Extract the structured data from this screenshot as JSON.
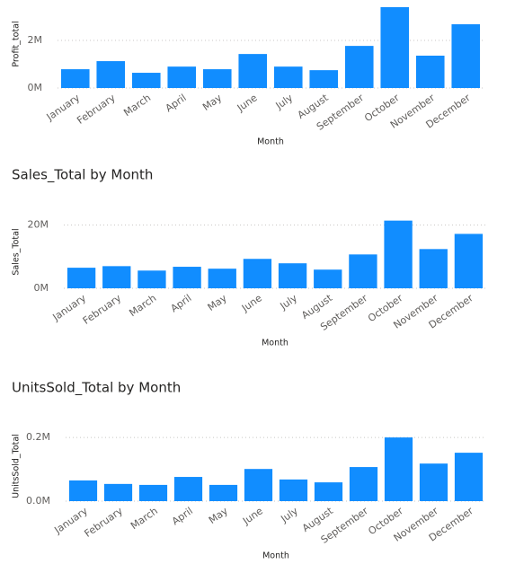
{
  "chart_data": [
    {
      "type": "bar",
      "x_label": "Month",
      "y_label": "Profit_total",
      "categories": [
        "January",
        "February",
        "March",
        "April",
        "May",
        "June",
        "July",
        "August",
        "September",
        "October",
        "November",
        "December"
      ],
      "values": [
        790000,
        1130000,
        640000,
        900000,
        790000,
        1430000,
        900000,
        750000,
        1770000,
        3400000,
        1360000,
        2680000
      ],
      "color": "#118DFF",
      "ylim": [
        0,
        3700000
      ],
      "yticks": [
        {
          "value": 0,
          "label": "0M"
        },
        {
          "value": 2000000,
          "label": "2M"
        }
      ],
      "grid": true
    },
    {
      "type": "bar",
      "title": "Sales_Total by Month",
      "x_label": "Month",
      "y_label": "Sales_Total",
      "categories": [
        "January",
        "February",
        "March",
        "April",
        "May",
        "June",
        "July",
        "August",
        "September",
        "October",
        "November",
        "December"
      ],
      "values": [
        6500000,
        7000000,
        5600000,
        6800000,
        6200000,
        9300000,
        7900000,
        5900000,
        10700000,
        21400000,
        12400000,
        17200000
      ],
      "color": "#118DFF",
      "ylim": [
        0,
        23000000
      ],
      "yticks": [
        {
          "value": 0,
          "label": "0M"
        },
        {
          "value": 20000000,
          "label": "20M"
        }
      ],
      "grid": true
    },
    {
      "type": "bar",
      "title": "UnitsSold_Total by Month",
      "x_label": "Month",
      "y_label": "UnitsSold_Total",
      "categories": [
        "January",
        "February",
        "March",
        "April",
        "May",
        "June",
        "July",
        "August",
        "September",
        "October",
        "November",
        "December"
      ],
      "values": [
        65000,
        54000,
        51000,
        76000,
        51000,
        101000,
        68000,
        59000,
        107000,
        200000,
        118000,
        152000
      ],
      "color": "#118DFF",
      "ylim": [
        0,
        220000
      ],
      "yticks": [
        {
          "value": 0,
          "label": "0.0M"
        },
        {
          "value": 200000,
          "label": "0.2M"
        }
      ],
      "grid": true
    }
  ]
}
